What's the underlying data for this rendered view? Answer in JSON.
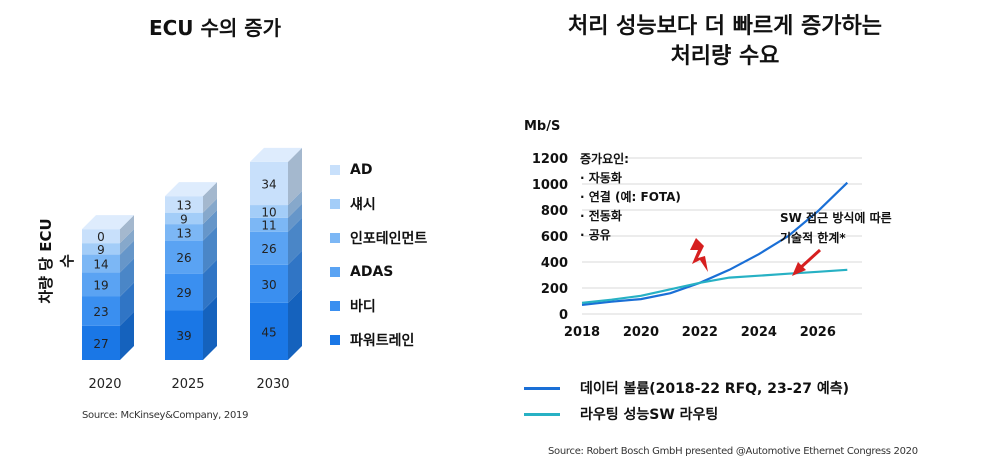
{
  "left": {
    "title": "ECU 수의 증가",
    "ylabel": "차량 당 ECU 수",
    "source": "Source: McKinsey&Company, 2019",
    "colors": [
      "#1a77e6",
      "#3a8ff0",
      "#5aa3f3",
      "#7cb7f5",
      "#a3cdf8",
      "#c8e0fb"
    ]
  },
  "right": {
    "title_line1": "처리 성능보다 더 빠르게 증가하는",
    "title_line2": "처리량 수요",
    "notes_title": "증가요인:",
    "notes": [
      "·  자동화",
      "·  연결 (예: FOTA)",
      "·  전동화",
      "·  공유"
    ],
    "callout_line1": "SW 접근 방식에 따른",
    "callout_line2": "기술적 한계*",
    "legend_blue": "데이터 볼륨(2018-22 RFQ, 23-27 예측)",
    "legend_teal": "라우팅 성능SW 라우팅",
    "source": "Source: Robert Bosch GmbH presented @Automotive  Ethernet Congress 2020"
  },
  "chart_data": [
    {
      "type": "bar",
      "stacked": true,
      "title": "ECU 수의 증가",
      "ylabel": "차량 당 ECU 수",
      "categories": [
        "2020",
        "2025",
        "2030"
      ],
      "series": [
        {
          "name": "파워트레인",
          "values": [
            27,
            39,
            45
          ],
          "color": "#1a77e6"
        },
        {
          "name": "바디",
          "values": [
            23,
            29,
            30
          ],
          "color": "#3a8ff0"
        },
        {
          "name": "ADAS",
          "values": [
            19,
            26,
            26
          ],
          "color": "#5aa3f3"
        },
        {
          "name": "인포테인먼트",
          "values": [
            14,
            13,
            11
          ],
          "color": "#7cb7f5"
        },
        {
          "name": "섀시",
          "values": [
            9,
            9,
            10
          ],
          "color": "#a3cdf8"
        },
        {
          "name": "AD",
          "values": [
            0,
            13,
            34
          ],
          "color": "#c8e0fb"
        }
      ],
      "legend_position": "right"
    },
    {
      "type": "line",
      "ylabel": "Mb/S",
      "x": [
        2018,
        2019,
        2020,
        2021,
        2022,
        2023,
        2024,
        2025,
        2026,
        2027
      ],
      "xticks": [
        "2018",
        "2020",
        "2022",
        "2024",
        "2026"
      ],
      "yticks": [
        "0",
        "200",
        "400",
        "600",
        "800",
        "1000",
        "1200"
      ],
      "ylim": [
        0,
        1200
      ],
      "xlim": [
        2018,
        2027.5
      ],
      "grid": true,
      "series": [
        {
          "name": "데이터 볼륨(2018-22 RFQ, 23-27 예측)",
          "color": "#1a6fd6",
          "values": [
            70,
            95,
            115,
            160,
            240,
            340,
            460,
            600,
            790,
            1010
          ]
        },
        {
          "name": "라우팅 성능SW 라우팅",
          "color": "#27b1c4",
          "values": [
            85,
            110,
            140,
            190,
            240,
            280,
            295,
            310,
            325,
            340
          ]
        }
      ],
      "annotations": [
        "증가요인:",
        "SW 접근 방식에 따른 기술적 한계*"
      ]
    }
  ]
}
